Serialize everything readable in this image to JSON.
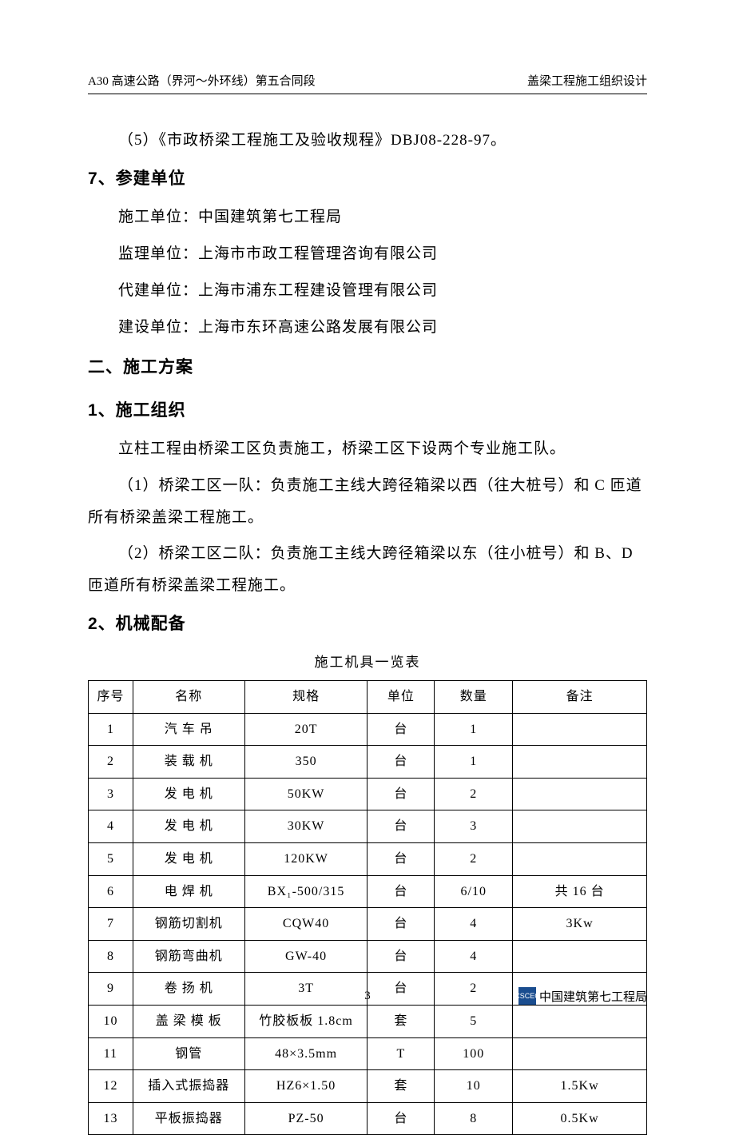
{
  "header": {
    "left": "A30 高速公路（界河～外环线）第五合同段",
    "right": "盖梁工程施工组织设计"
  },
  "body": {
    "line5": "（5）《市政桥梁工程施工及验收规程》DBJ08-228-97。",
    "sec7_title": "7、参建单位",
    "sec7_l1": "施工单位：中国建筑第七工程局",
    "sec7_l2": "监理单位：上海市市政工程管理咨询有限公司",
    "sec7_l3": "代建单位：上海市浦东工程建设管理有限公司",
    "sec7_l4": "建设单位：上海市东环高速公路发展有限公司",
    "h2_2": "二、施工方案",
    "h3_1": "1、施工组织",
    "p1": "立柱工程由桥梁工区负责施工，桥梁工区下设两个专业施工队。",
    "p2": "（1）桥梁工区一队：负责施工主线大跨径箱梁以西（往大桩号）和 C 匝道所有桥梁盖梁工程施工。",
    "p3": "（2）桥梁工区二队：负责施工主线大跨径箱梁以东（往小桩号）和 B、D 匝道所有桥梁盖梁工程施工。",
    "h3_2": "2、机械配备",
    "table_title": "施工机具一览表"
  },
  "table": {
    "headers": [
      "序号",
      "名称",
      "规格",
      "单位",
      "数量",
      "备注"
    ],
    "rows": [
      {
        "seq": "1",
        "name": "汽 车 吊",
        "spec": "20T",
        "unit": "台",
        "qty": "1",
        "note": ""
      },
      {
        "seq": "2",
        "name": "装 载 机",
        "spec": "350",
        "unit": "台",
        "qty": "1",
        "note": ""
      },
      {
        "seq": "3",
        "name": "发 电 机",
        "spec": "50KW",
        "unit": "台",
        "qty": "2",
        "note": ""
      },
      {
        "seq": "4",
        "name": "发 电 机",
        "spec": "30KW",
        "unit": "台",
        "qty": "3",
        "note": ""
      },
      {
        "seq": "5",
        "name": "发 电 机",
        "spec": "120KW",
        "unit": "台",
        "qty": "2",
        "note": ""
      },
      {
        "seq": "6",
        "name": "电 焊 机",
        "spec": "BX₁-500/315",
        "unit": "台",
        "qty": "6/10",
        "note": "共 16 台"
      },
      {
        "seq": "7",
        "name": "钢筋切割机",
        "spec": "CQW40",
        "unit": "台",
        "qty": "4",
        "note": "3Kw"
      },
      {
        "seq": "8",
        "name": "钢筋弯曲机",
        "spec": "GW-40",
        "unit": "台",
        "qty": "4",
        "note": ""
      },
      {
        "seq": "9",
        "name": "卷 扬 机",
        "spec": "3T",
        "unit": "台",
        "qty": "2",
        "note": ""
      },
      {
        "seq": "10",
        "name": "盖 梁 模 板",
        "spec": "竹胶板板 1.8cm",
        "unit": "套",
        "qty": "5",
        "note": ""
      },
      {
        "seq": "11",
        "name": "钢管",
        "spec": "48×3.5mm",
        "unit": "T",
        "qty": "100",
        "note": ""
      },
      {
        "seq": "12",
        "name": "插入式振捣器",
        "spec": "HZ6×1.50",
        "unit": "套",
        "qty": "10",
        "note": "1.5Kw"
      },
      {
        "seq": "13",
        "name": "平板振捣器",
        "spec": "PZ-50",
        "unit": "台",
        "qty": "8",
        "note": "0.5Kw"
      }
    ]
  },
  "footer": {
    "page": "3",
    "company": "中国建筑第七工程局",
    "logo": "CSCEC"
  }
}
